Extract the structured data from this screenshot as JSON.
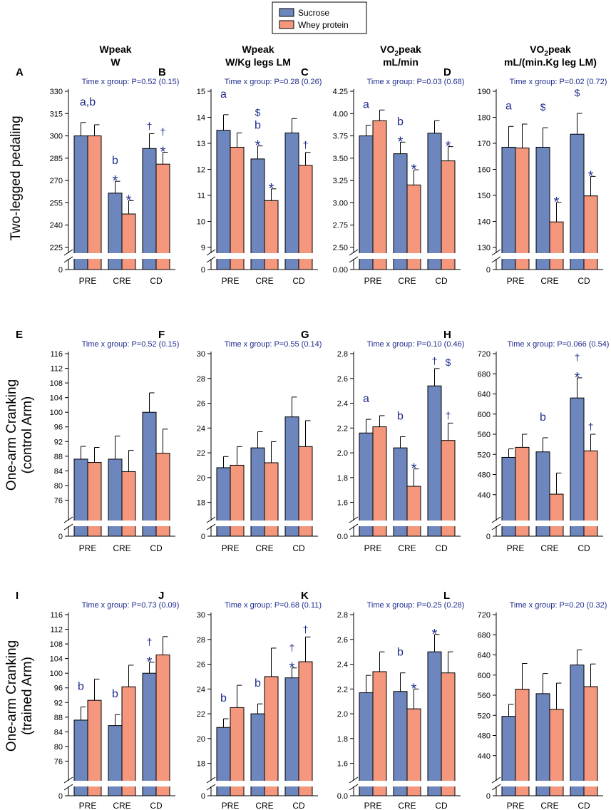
{
  "legend": {
    "items": [
      {
        "label": "Sucrose",
        "color": "#6d86bd"
      },
      {
        "label": "Whey protein",
        "color": "#f4977c"
      }
    ]
  },
  "column_headers": [
    {
      "line1": "Wpeak",
      "line2": "W",
      "sub": ""
    },
    {
      "line1": "Wpeak",
      "line2": "W/Kg legs LM",
      "sub": ""
    },
    {
      "line1": "VO",
      "sub": "2",
      "line1b": "peak",
      "line2": "mL/min"
    },
    {
      "line1": "VO",
      "sub": "2",
      "line1b": "peak",
      "line2": "mL/(min.Kg leg LM)"
    }
  ],
  "row_labels": [
    {
      "line1": "Two-legged pedaling",
      "line2": ""
    },
    {
      "line1": "One-arm Cranking",
      "line2": "(control Arm)"
    },
    {
      "line1": "One-arm Cranking",
      "line2": "(trained Arm)"
    }
  ],
  "chart_data": [
    {
      "panel": "A",
      "type": "bar",
      "stat": "Time x group: P=0.52 (0.15)",
      "categories": [
        "PRE",
        "CRE",
        "CD"
      ],
      "yticks": [
        "330",
        "315",
        "300",
        "285",
        "270",
        "255",
        "240",
        "225"
      ],
      "ylim": [
        225,
        330
      ],
      "zero_label": "0",
      "series": [
        {
          "name": "Sucrose",
          "values": [
            300,
            261.5,
            291.5
          ],
          "err": [
            9,
            8,
            10
          ]
        },
        {
          "name": "Whey protein",
          "values": [
            300,
            247.5,
            281
          ],
          "err": [
            7.5,
            9,
            8
          ]
        }
      ],
      "annotations": [
        {
          "cat": 0,
          "s": 0.5,
          "text": "a,b",
          "style": "letter",
          "lvl": 1
        },
        {
          "cat": 1,
          "s": 0,
          "text": "b",
          "style": "letter",
          "lvl": 1
        },
        {
          "cat": 1,
          "s": 0,
          "text": "*",
          "style": "star",
          "lvl": 0
        },
        {
          "cat": 1,
          "s": 1,
          "text": "*",
          "style": "star",
          "lvl": 0
        },
        {
          "cat": 2,
          "s": 0,
          "text": "†",
          "style": "dagger",
          "lvl": 0
        },
        {
          "cat": 2,
          "s": 1,
          "text": "†",
          "style": "dagger",
          "lvl": 1
        },
        {
          "cat": 2,
          "s": 1,
          "text": "*",
          "style": "star",
          "lvl": 0
        }
      ]
    },
    {
      "panel": "B",
      "type": "bar",
      "stat": "Time x group: P=0.28 (0.26)",
      "categories": [
        "PRE",
        "CRE",
        "CD"
      ],
      "yticks": [
        "15",
        "14",
        "13",
        "12",
        "11",
        "10",
        "9"
      ],
      "ylim": [
        9,
        15
      ],
      "zero_label": "0",
      "series": [
        {
          "name": "Sucrose",
          "values": [
            13.5,
            12.4,
            13.4
          ],
          "err": [
            0.6,
            0.5,
            0.55
          ]
        },
        {
          "name": "Whey protein",
          "values": [
            12.85,
            10.8,
            12.15
          ],
          "err": [
            0.55,
            0.45,
            0.5
          ]
        }
      ],
      "annotations": [
        {
          "cat": 0,
          "s": 0,
          "text": "a",
          "style": "letter",
          "lvl": 1
        },
        {
          "cat": 1,
          "s": 0,
          "text": "$",
          "style": "dollar",
          "lvl": 2
        },
        {
          "cat": 1,
          "s": 0,
          "text": "b",
          "style": "letter",
          "lvl": 1
        },
        {
          "cat": 1,
          "s": 0,
          "text": "*",
          "style": "star",
          "lvl": 0
        },
        {
          "cat": 1,
          "s": 1,
          "text": "*",
          "style": "star",
          "lvl": 0
        },
        {
          "cat": 2,
          "s": 1,
          "text": "†",
          "style": "dagger",
          "lvl": 0
        }
      ]
    },
    {
      "panel": "C",
      "type": "bar",
      "stat": "Time x group: P=0.03 (0.68)",
      "categories": [
        "PRE",
        "CRE",
        "CD"
      ],
      "yticks": [
        "4.25",
        "4.00",
        "3.75",
        "3.50",
        "3.25",
        "3.00",
        "2.75",
        "2.50"
      ],
      "ylim": [
        2.5,
        4.25
      ],
      "zero_label": "0.00",
      "series": [
        {
          "name": "Sucrose",
          "values": [
            3.75,
            3.55,
            3.78
          ],
          "err": [
            0.12,
            0.13,
            0.14
          ]
        },
        {
          "name": "Whey protein",
          "values": [
            3.92,
            3.2,
            3.47
          ],
          "err": [
            0.12,
            0.17,
            0.16
          ]
        }
      ],
      "annotations": [
        {
          "cat": 0,
          "s": 0,
          "text": "a",
          "style": "letter",
          "lvl": 1
        },
        {
          "cat": 1,
          "s": 0,
          "text": "b",
          "style": "letter",
          "lvl": 1
        },
        {
          "cat": 1,
          "s": 0,
          "text": "*",
          "style": "star",
          "lvl": 0
        },
        {
          "cat": 1,
          "s": 1,
          "text": "*",
          "style": "star",
          "lvl": 0
        },
        {
          "cat": 2,
          "s": 1,
          "text": "*",
          "style": "star",
          "lvl": 0
        }
      ]
    },
    {
      "panel": "D",
      "type": "bar",
      "stat": "Time x group: P=0.02 (0.72)",
      "categories": [
        "PRE",
        "CRE",
        "CD"
      ],
      "yticks": [
        "190",
        "180",
        "170",
        "160",
        "150",
        "140",
        "130"
      ],
      "ylim": [
        130,
        190
      ],
      "zero_label": "0",
      "series": [
        {
          "name": "Sucrose",
          "values": [
            168.5,
            168.5,
            173.5
          ],
          "err": [
            8,
            7.5,
            8
          ]
        },
        {
          "name": "Whey protein",
          "values": [
            168.2,
            139.8,
            149.8
          ],
          "err": [
            9.2,
            7.5,
            7.5
          ]
        }
      ],
      "annotations": [
        {
          "cat": 0,
          "s": 0,
          "text": "a",
          "style": "letter",
          "lvl": 1
        },
        {
          "cat": 1,
          "s": 0,
          "text": "$",
          "style": "dollar",
          "lvl": 1
        },
        {
          "cat": 1,
          "s": 1,
          "text": "*",
          "style": "star",
          "lvl": 0
        },
        {
          "cat": 2,
          "s": 0,
          "text": "$",
          "style": "dollar",
          "lvl": 1
        },
        {
          "cat": 2,
          "s": 1,
          "text": "*",
          "style": "star",
          "lvl": 0
        }
      ]
    },
    {
      "panel": "E",
      "type": "bar",
      "stat": "Time x group: P=0.52 (0.15)",
      "categories": [
        "PRE",
        "CRE",
        "CD"
      ],
      "yticks": [
        "116",
        "112",
        "108",
        "104",
        "100",
        "96",
        "92",
        "88",
        "84",
        "80",
        "76"
      ],
      "ylim": [
        72,
        116
      ],
      "zero_label": "0",
      "series": [
        {
          "name": "Sucrose",
          "values": [
            87.2,
            87.2,
            100
          ],
          "err": [
            3.5,
            6.3,
            5.3
          ]
        },
        {
          "name": "Whey protein",
          "values": [
            86.3,
            83.8,
            88.8
          ],
          "err": [
            4.1,
            5.8,
            6.6
          ]
        }
      ],
      "annotations": []
    },
    {
      "panel": "F",
      "type": "bar",
      "stat": "Time x group: P=0.55 (0.14)",
      "categories": [
        "PRE",
        "CRE",
        "CD"
      ],
      "yticks": [
        "30",
        "28",
        "26",
        "24",
        "22",
        "20",
        "18"
      ],
      "ylim": [
        17,
        30
      ],
      "zero_label": "0",
      "series": [
        {
          "name": "Sucrose",
          "values": [
            20.8,
            22.4,
            24.9
          ],
          "err": [
            0.9,
            1.3,
            1.6
          ]
        },
        {
          "name": "Whey protein",
          "values": [
            21,
            21.2,
            22.5
          ],
          "err": [
            1.5,
            1.7,
            2.1
          ]
        }
      ],
      "annotations": []
    },
    {
      "panel": "G",
      "type": "bar",
      "stat": "Time x group: P=0.10 (0.46)",
      "categories": [
        "PRE",
        "CRE",
        "CD"
      ],
      "yticks": [
        "2.8",
        "2.6",
        "2.4",
        "2.2",
        "2.0",
        "1.8",
        "1.6"
      ],
      "ylim": [
        1.5,
        2.8
      ],
      "zero_label": "0.0",
      "series": [
        {
          "name": "Sucrose",
          "values": [
            2.16,
            2.04,
            2.54
          ],
          "err": [
            0.11,
            0.09,
            0.14
          ]
        },
        {
          "name": "Whey protein",
          "values": [
            2.21,
            1.73,
            2.1
          ],
          "err": [
            0.09,
            0.14,
            0.14
          ]
        }
      ],
      "annotations": [
        {
          "cat": 0,
          "s": 0,
          "text": "a",
          "style": "letter",
          "lvl": 1
        },
        {
          "cat": 1,
          "s": 0,
          "text": "b",
          "style": "letter",
          "lvl": 1
        },
        {
          "cat": 1,
          "s": 1,
          "text": "*",
          "style": "star",
          "lvl": 0
        },
        {
          "cat": 2,
          "s": 0,
          "text": "†",
          "style": "dagger",
          "lvl": 0
        },
        {
          "cat": 2,
          "s": 1,
          "text": "$",
          "style": "dollar",
          "lvl": "top"
        },
        {
          "cat": 2,
          "s": 1,
          "text": "†",
          "style": "dagger",
          "lvl": 0
        }
      ]
    },
    {
      "panel": "H",
      "type": "bar",
      "stat": "Time x group: P=0.066 (0.54)",
      "categories": [
        "PRE",
        "CRE",
        "CD"
      ],
      "yticks": [
        "720",
        "680",
        "640",
        "600",
        "560",
        "520",
        "480",
        "440"
      ],
      "ylim": [
        400,
        720
      ],
      "zero_label": "0",
      "series": [
        {
          "name": "Sucrose",
          "values": [
            514,
            525,
            632
          ],
          "err": [
            17,
            28,
            40
          ]
        },
        {
          "name": "Whey protein",
          "values": [
            534,
            441,
            527
          ],
          "err": [
            26,
            42,
            33
          ]
        }
      ],
      "annotations": [
        {
          "cat": 1,
          "s": 0,
          "text": "b",
          "style": "letter",
          "lvl": 1
        },
        {
          "cat": 2,
          "s": 0,
          "text": "*",
          "style": "star",
          "lvl": 0
        },
        {
          "cat": 2,
          "s": 0,
          "text": "†",
          "style": "dagger",
          "lvl": 1
        },
        {
          "cat": 2,
          "s": 1,
          "text": "†",
          "style": "dagger",
          "lvl": 0
        }
      ]
    },
    {
      "panel": "I",
      "type": "bar",
      "stat": "Time x group: P=0.73 (0.09)",
      "categories": [
        "PRE",
        "CRE",
        "CD"
      ],
      "yticks": [
        "116",
        "112",
        "108",
        "104",
        "100",
        "96",
        "92",
        "88",
        "84",
        "80",
        "76"
      ],
      "ylim": [
        72,
        116
      ],
      "zero_label": "0",
      "series": [
        {
          "name": "Sucrose",
          "values": [
            87.2,
            85.7,
            100
          ],
          "err": [
            3.6,
            3,
            3
          ]
        },
        {
          "name": "Whey protein",
          "values": [
            92.6,
            96.3,
            105
          ],
          "err": [
            5.8,
            5.9,
            5
          ]
        }
      ],
      "annotations": [
        {
          "cat": 0,
          "s": 0,
          "text": "b",
          "style": "letter",
          "lvl": 1
        },
        {
          "cat": 1,
          "s": 0,
          "text": "b",
          "style": "letter",
          "lvl": 1
        },
        {
          "cat": 2,
          "s": 0,
          "text": "*",
          "style": "star",
          "lvl": 0
        },
        {
          "cat": 2,
          "s": 0,
          "text": "†",
          "style": "dagger",
          "lvl": 1
        }
      ]
    },
    {
      "panel": "J",
      "type": "bar",
      "stat": "Time x group: P=0.68 (0.11)",
      "categories": [
        "PRE",
        "CRE",
        "CD"
      ],
      "yticks": [
        "30",
        "28",
        "26",
        "24",
        "22",
        "20",
        "18"
      ],
      "ylim": [
        17,
        30
      ],
      "zero_label": "0",
      "series": [
        {
          "name": "Sucrose",
          "values": [
            20.9,
            22,
            24.9
          ],
          "err": [
            0.7,
            0.8,
            0.8
          ]
        },
        {
          "name": "Whey protein",
          "values": [
            22.5,
            25,
            26.2
          ],
          "err": [
            1.8,
            2.3,
            2
          ]
        }
      ],
      "annotations": [
        {
          "cat": 0,
          "s": 0,
          "text": "b",
          "style": "letter",
          "lvl": 1
        },
        {
          "cat": 1,
          "s": 0,
          "text": "b",
          "style": "letter",
          "lvl": 1
        },
        {
          "cat": 2,
          "s": 0,
          "text": "*",
          "style": "star",
          "lvl": 0
        },
        {
          "cat": 2,
          "s": 0,
          "text": "†",
          "style": "dagger",
          "lvl": 1
        },
        {
          "cat": 2,
          "s": 1,
          "text": "†",
          "style": "dagger",
          "lvl": 0
        }
      ]
    },
    {
      "panel": "K",
      "type": "bar",
      "stat": "Time x group: P=0.25 (0.28)",
      "categories": [
        "PRE",
        "CRE",
        "CD"
      ],
      "yticks": [
        "2.8",
        "2.6",
        "2.4",
        "2.2",
        "2.0",
        "1.8",
        "1.6"
      ],
      "ylim": [
        1.5,
        2.8
      ],
      "zero_label": "0.0",
      "series": [
        {
          "name": "Sucrose",
          "values": [
            2.17,
            2.18,
            2.5
          ],
          "err": [
            0.14,
            0.15,
            0.14
          ]
        },
        {
          "name": "Whey protein",
          "values": [
            2.34,
            2.04,
            2.33
          ],
          "err": [
            0.16,
            0.16,
            0.17
          ]
        }
      ],
      "annotations": [
        {
          "cat": 1,
          "s": 0,
          "text": "b",
          "style": "letter",
          "lvl": 1
        },
        {
          "cat": 1,
          "s": 1,
          "text": "*",
          "style": "star",
          "lvl": 0
        },
        {
          "cat": 2,
          "s": 0,
          "text": "*",
          "style": "star",
          "lvl": 0
        }
      ]
    },
    {
      "panel": "L",
      "type": "bar",
      "stat": "Time x group: P=0.20 (0.32)",
      "categories": [
        "PRE",
        "CRE",
        "CD"
      ],
      "yticks": [
        "720",
        "680",
        "640",
        "600",
        "560",
        "520",
        "480",
        "440"
      ],
      "ylim": [
        400,
        720
      ],
      "zero_label": "0",
      "series": [
        {
          "name": "Sucrose",
          "values": [
            518,
            563,
            620
          ],
          "err": [
            24,
            40,
            30
          ]
        },
        {
          "name": "Whey protein",
          "values": [
            572,
            532,
            577
          ],
          "err": [
            51,
            52,
            45
          ]
        }
      ],
      "annotations": []
    }
  ]
}
